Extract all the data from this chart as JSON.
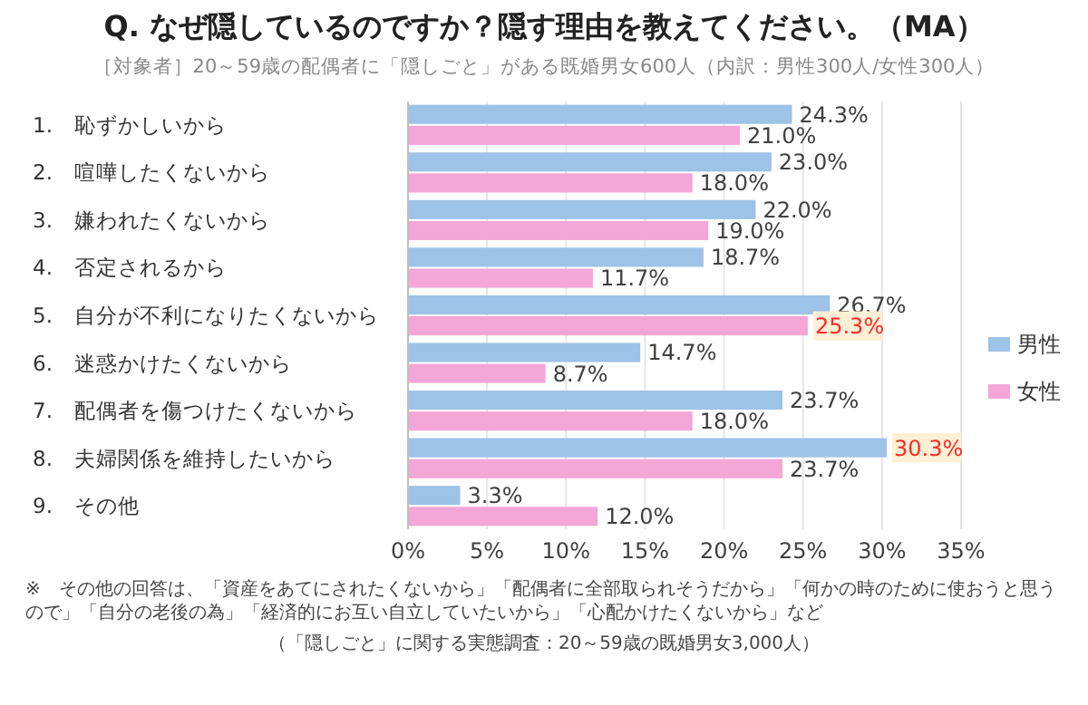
{
  "chart_data": {
    "type": "bar",
    "orientation": "horizontal",
    "title": "Q. なぜ隠しているのですか？隠す理由を教えてください。（MA）",
    "subtitle": "［対象者］20～59歳の配偶者に「隠しごと」がある既婚男女600人（内訳：男性300人/女性300人）",
    "categories": [
      "1.　恥ずかしいから",
      "2.　喧嘩したくないから",
      "3.　嫌われたくないから",
      "4.　否定されるから",
      "5.　自分が不利になりたくないから",
      "6.　迷惑かけたくないから",
      "7.　配偶者を傷つけたくないから",
      "8.　夫婦関係を維持したいから",
      "9.　その他"
    ],
    "series": [
      {
        "name": "男性",
        "color": "#9dc3e6",
        "values": [
          24.3,
          23.0,
          22.0,
          18.7,
          26.7,
          14.7,
          23.7,
          30.3,
          3.3
        ],
        "value_labels": [
          "24.3%",
          "23.0%",
          "22.0%",
          "18.7%",
          "26.7%",
          "14.7%",
          "23.7%",
          "30.3%",
          "3.3%"
        ]
      },
      {
        "name": "女性",
        "color": "#f4a6d7",
        "values": [
          21.0,
          18.0,
          19.0,
          11.7,
          25.3,
          8.7,
          18.0,
          23.7,
          12.0
        ],
        "value_labels": [
          "21.0%",
          "18.0%",
          "19.0%",
          "11.7%",
          "25.3%",
          "8.7%",
          "18.0%",
          "23.7%",
          "12.0%"
        ]
      }
    ],
    "xlim": [
      0,
      35
    ],
    "xticks": [
      {
        "value": 0,
        "label": "0%"
      },
      {
        "value": 5,
        "label": "5%"
      },
      {
        "value": 10,
        "label": "10%"
      },
      {
        "value": 15,
        "label": "15%"
      },
      {
        "value": 20,
        "label": "20%"
      },
      {
        "value": 25,
        "label": "25%"
      },
      {
        "value": 30,
        "label": "30%"
      },
      {
        "value": 35,
        "label": "35%"
      }
    ],
    "grid": "x",
    "legend": "right",
    "annotations": [
      "※　その他の回答は、「資産をあてにされたくないから」「配偶者に全部取られそうだから」「何かの時のために使おうと思うので」「自分の老後の為」「経済的にお互い自立していたいから」「心配かけたくないから」など",
      "（「隠しごと」に関する実態調査：20～59歳の既婚男女3,000人）"
    ]
  }
}
